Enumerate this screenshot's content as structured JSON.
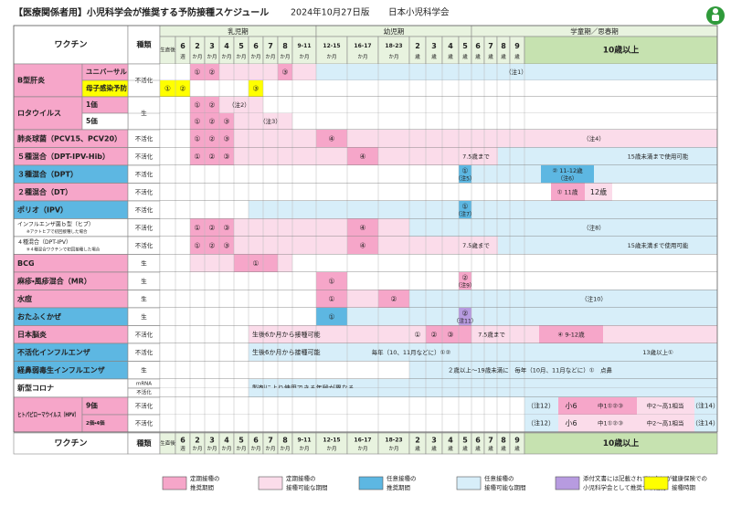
{
  "header": {
    "title": "【医療関係者用】小児科学会が推奨する予防接種スケジュール",
    "edition": "2024年10月27日版",
    "org": "日本小児科学会"
  },
  "table": {
    "col_vaccine": "ワクチン",
    "col_type": "種類",
    "periods": [
      "乳児期",
      "幼児期",
      "学童期／思春期"
    ],
    "ages": [
      {
        "label": "生直後"
      },
      {
        "label": "6",
        "unit": "週"
      },
      {
        "label": "2",
        "unit": "か月"
      },
      {
        "label": "3",
        "unit": "か月"
      },
      {
        "label": "4",
        "unit": "か月"
      },
      {
        "label": "5",
        "unit": "か月"
      },
      {
        "label": "6",
        "unit": "か月"
      },
      {
        "label": "7",
        "unit": "か月"
      },
      {
        "label": "8",
        "unit": "か月"
      },
      {
        "label": "9-11",
        "unit": "か月"
      },
      {
        "label": "12-15",
        "unit": "か月"
      },
      {
        "label": "16-17",
        "unit": "か月"
      },
      {
        "label": "18-23",
        "unit": "か月"
      },
      {
        "label": "2",
        "unit": "歳"
      },
      {
        "label": "3",
        "unit": "歳"
      },
      {
        "label": "4",
        "unit": "歳"
      },
      {
        "label": "5",
        "unit": "歳"
      },
      {
        "label": "6",
        "unit": "歳"
      },
      {
        "label": "7",
        "unit": "歳"
      },
      {
        "label": "8",
        "unit": "歳"
      },
      {
        "label": "9",
        "unit": "歳"
      },
      {
        "label": "10歳以上"
      }
    ],
    "rows": [
      {
        "name": "B型肝炎",
        "type": "不活化",
        "lines": [
          {
            "sub": "ユニバーサル",
            "texts": [
              "①",
              "②",
              "③",
              "（注1）"
            ]
          },
          {
            "sub": "母子感染予防",
            "texts": [
              "①",
              "②",
              "③"
            ]
          }
        ]
      },
      {
        "name": "ロタウイルス",
        "type": "生",
        "lines": [
          {
            "sub": "1価",
            "texts": [
              "①",
              "②",
              "（注2）"
            ]
          },
          {
            "sub": "5価",
            "texts": [
              "①",
              "②",
              "③",
              "（注3）"
            ]
          }
        ]
      },
      {
        "name": "肺炎球菌（PCV15、PCV20）",
        "type": "不活化",
        "lines": [
          {
            "texts": [
              "①",
              "②",
              "③",
              "④",
              "（注4）"
            ]
          }
        ]
      },
      {
        "name": "５種混合（DPT-IPV-Hib）",
        "type": "不活化",
        "lines": [
          {
            "texts": [
              "①",
              "②",
              "③",
              "④",
              "7.5歳まで",
              "15歳未満まで使用可能"
            ]
          }
        ]
      },
      {
        "name": "３種混合（DPT）",
        "type": "不活化",
        "lines": [
          {
            "texts": [
              "①",
              "（注5）",
              "② 11-12歳",
              "（注6）"
            ]
          }
        ]
      },
      {
        "name": "２種混合（DT）",
        "type": "不活化",
        "lines": [
          {
            "texts": [
              "① 11歳",
              "12歳"
            ]
          }
        ]
      },
      {
        "name": "ポリオ（IPV）",
        "type": "不活化",
        "lines": [
          {
            "texts": [
              "①",
              "（注7）"
            ]
          }
        ]
      },
      {
        "name": "インフルエンザ菌ｂ型（ヒブ）",
        "note": "※アクトヒブで初回接種した場合",
        "type": "不活化",
        "lines": [
          {
            "texts": [
              "①",
              "②",
              "③",
              "④",
              "（注8）"
            ]
          }
        ]
      },
      {
        "name": "４種混合（DPT-IPV）",
        "note": "※４種混合ワクチンで初回接種した場合",
        "type": "不活化",
        "lines": [
          {
            "texts": [
              "①",
              "②",
              "③",
              "④",
              "7.5歳まで",
              "15歳未満まで使用可能"
            ]
          }
        ]
      },
      {
        "name": "BCG",
        "type": "生",
        "lines": [
          {
            "texts": [
              "①"
            ]
          }
        ]
      },
      {
        "name": "麻疹・風疹混合（MR）",
        "type": "生",
        "lines": [
          {
            "texts": [
              "①",
              "②",
              "（注9）"
            ]
          }
        ]
      },
      {
        "name": "水痘",
        "type": "生",
        "lines": [
          {
            "texts": [
              "①",
              "②",
              "（注10）"
            ]
          }
        ]
      },
      {
        "name": "おたふくかぜ",
        "type": "生",
        "lines": [
          {
            "texts": [
              "①",
              "②",
              "（注11）"
            ]
          }
        ]
      },
      {
        "name": "日本脳炎",
        "type": "不活化",
        "lines": [
          {
            "texts": [
              "生後6か月から接種可能",
              "①",
              "②",
              "③",
              "7.5歳まで",
              "④ 9-12歳"
            ]
          }
        ]
      },
      {
        "name": "不活化インフルエンザ",
        "type": "不活化",
        "lines": [
          {
            "texts": [
              "生後6か月から接種可能",
              "毎年（10、11月などに）①②",
              "13歳以上①"
            ]
          }
        ]
      },
      {
        "name": "経鼻弱毒生インフルエンザ",
        "type": "生",
        "lines": [
          {
            "texts": [
              "２歳以上～19歳未満に　毎年（10月、11月などに）①　点鼻"
            ]
          }
        ]
      },
      {
        "name": "新型コロナ",
        "lines": [
          {
            "type": "mRNA",
            "texts": [
              "製剤により使用できる年齢が異なる"
            ]
          },
          {
            "type": "不活化",
            "texts": []
          }
        ]
      },
      {
        "name": "ヒトパピローマウイルス（HPV）",
        "lines": [
          {
            "sub": "9価",
            "type": "不活化",
            "texts": [
              "（注12）",
              "小6",
              "中1①②③",
              "中2～高1相当",
              "（注14）"
            ]
          },
          {
            "sub": "2価・4価",
            "type": "不活化",
            "texts": [
              "（注12）",
              "小6",
              "中1①②③",
              "中2～高1相当",
              "（注14）"
            ]
          }
        ]
      }
    ]
  },
  "legend": [
    {
      "color": "#f6a6c9",
      "label": [
        "定期接種の",
        "推奨期間"
      ]
    },
    {
      "color": "#fbdcea",
      "label": [
        "定期接種の",
        "接種可能な期間"
      ]
    },
    {
      "color": "#5db7e2",
      "label": [
        "任意接種の",
        "推奨期間"
      ]
    },
    {
      "color": "#d7eef9",
      "label": [
        "任意接種の",
        "接種可能な期間"
      ]
    },
    {
      "color": "#b79be0",
      "label": [
        "添付文書には記載されていないが",
        "小児科学会として推奨する期間"
      ]
    },
    {
      "color": "#ffff00",
      "label": [
        "健康保険での",
        "接種時期"
      ]
    }
  ]
}
